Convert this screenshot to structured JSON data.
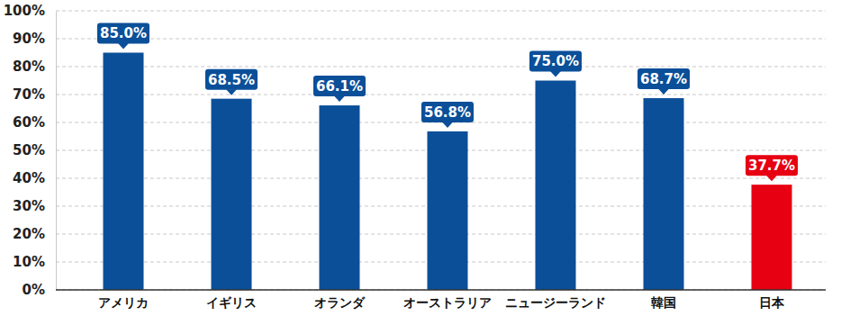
{
  "chart_data": {
    "type": "bar",
    "categories": [
      "アメリカ",
      "イギリス",
      "オランダ",
      "オーストラリア",
      "ニュージーランド",
      "韓国",
      "日本"
    ],
    "values": [
      85.0,
      68.5,
      66.1,
      56.8,
      75.0,
      68.7,
      37.7
    ],
    "value_labels": [
      "85.0%",
      "68.5%",
      "66.1%",
      "56.8%",
      "75.0%",
      "68.7%",
      "37.7%"
    ],
    "colors": [
      "#0b4f99",
      "#0b4f99",
      "#0b4f99",
      "#0b4f99",
      "#0b4f99",
      "#0b4f99",
      "#e60012"
    ],
    "ylim": [
      0,
      100
    ],
    "yticks": [
      {
        "value": 0,
        "label": "0%"
      },
      {
        "value": 10,
        "label": "10%"
      },
      {
        "value": 20,
        "label": "20%"
      },
      {
        "value": 30,
        "label": "30%"
      },
      {
        "value": 40,
        "label": "40%"
      },
      {
        "value": 50,
        "label": "50%"
      },
      {
        "value": 60,
        "label": "60%"
      },
      {
        "value": 70,
        "label": "70%"
      },
      {
        "value": 80,
        "label": "80%"
      },
      {
        "value": 90,
        "label": "90%"
      },
      {
        "value": 100,
        "label": "100%"
      }
    ],
    "grid": true,
    "data_labels": true
  }
}
